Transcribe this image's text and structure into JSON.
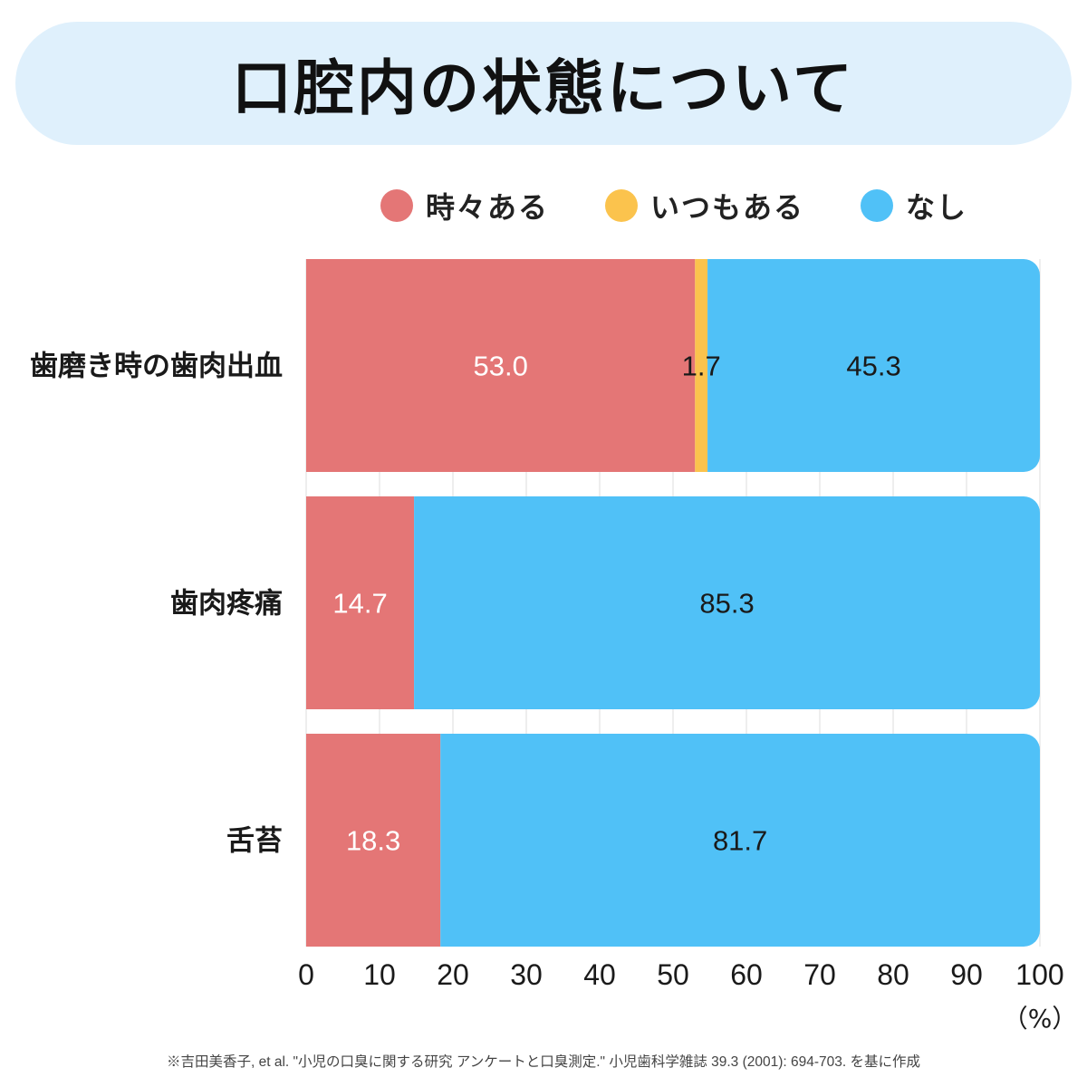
{
  "title": "口腔内の状態について",
  "colors": {
    "sometimes": "#e47676",
    "always": "#fbc34d",
    "none": "#50c1f7",
    "banner": "#dff0fc"
  },
  "chart_data": {
    "type": "bar",
    "orientation": "horizontal",
    "stacked": true,
    "categories": [
      "歯磨き時の歯肉出血",
      "歯肉疼痛",
      "舌苔"
    ],
    "series": [
      {
        "key": "sometimes",
        "name": "時々ある",
        "values": [
          53.0,
          14.7,
          18.3
        ],
        "labels": [
          "53.0",
          "14.7",
          "18.3"
        ]
      },
      {
        "key": "always",
        "name": "いつもある",
        "values": [
          1.7,
          0,
          0
        ],
        "labels": [
          "1.7",
          "",
          ""
        ]
      },
      {
        "key": "none",
        "name": "なし",
        "values": [
          45.3,
          85.3,
          81.7
        ],
        "labels": [
          "45.3",
          "85.3",
          "81.7"
        ]
      }
    ],
    "xlim": [
      0,
      100
    ],
    "xticks": [
      "0",
      "10",
      "20",
      "30",
      "40",
      "50",
      "60",
      "70",
      "80",
      "90",
      "100"
    ],
    "xunit": "（%）",
    "grid": true
  },
  "footnote": "※吉田美香子, et al. \"小児の口臭に関する研究 アンケートと口臭測定.\" 小児歯科学雑誌 39.3 (2001): 694-703. を基に作成"
}
